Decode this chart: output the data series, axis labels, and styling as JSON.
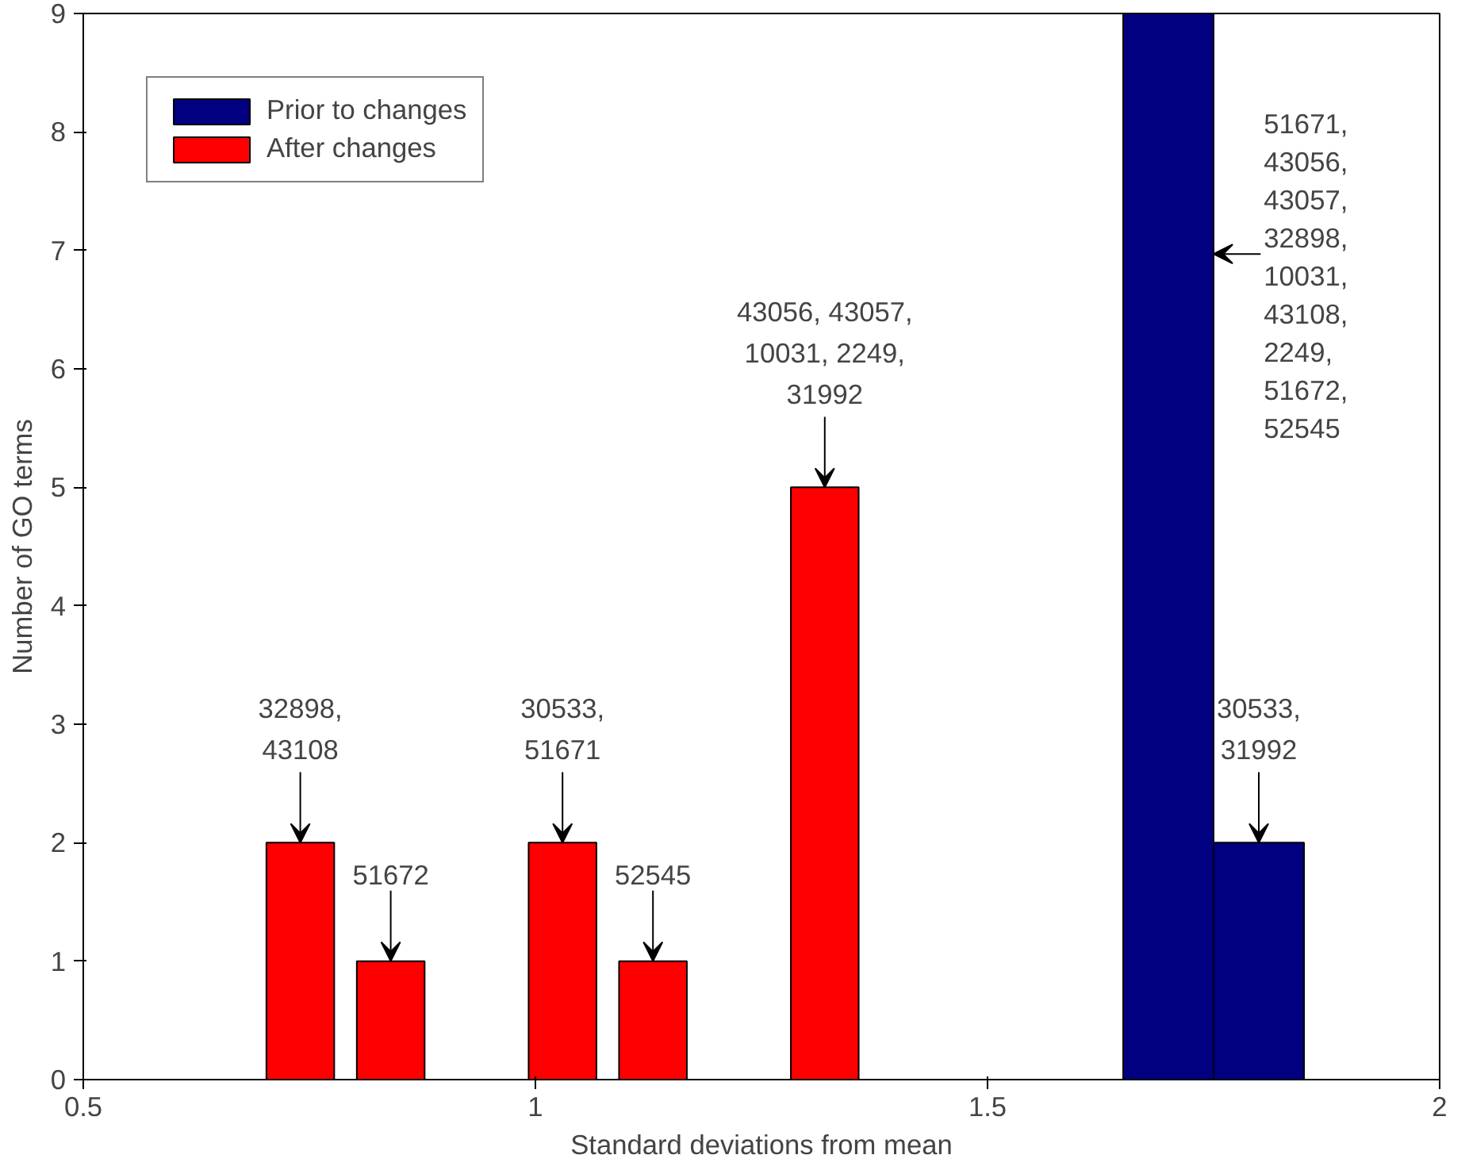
{
  "chart_data": {
    "type": "bar",
    "xlabel": "Standard deviations from mean",
    "ylabel": "Number of GO terms",
    "series": [
      {
        "name": "Prior to changes",
        "color": "#000080",
        "x": [
          1.7,
          1.8
        ],
        "values": [
          9,
          2
        ]
      },
      {
        "name": "After changes",
        "color": "#ff0000",
        "x": [
          0.74,
          0.84,
          1.03,
          1.13,
          1.32
        ],
        "values": [
          2,
          1,
          2,
          1,
          5
        ]
      }
    ],
    "xlim": [
      0.5,
      2
    ],
    "xticks": [
      0.5,
      1,
      1.5,
      2
    ],
    "ylim": [
      0,
      9
    ],
    "yticks": [
      0,
      1,
      2,
      3,
      4,
      5,
      6,
      7,
      8,
      9
    ],
    "grid": false,
    "legend": "top left",
    "annotations": [
      {
        "text": "32898,\n43108",
        "x": 0.74,
        "y": 2
      },
      {
        "text": "51672",
        "x": 0.84,
        "y": 1
      },
      {
        "text": "30533,\n51671",
        "x": 1.03,
        "y": 2
      },
      {
        "text": "52545",
        "x": 1.13,
        "y": 1
      },
      {
        "text": "43056, 43057,\n10031, 2249,\n31992",
        "x": 1.32,
        "y": 5
      },
      "51671,\n43056,\n43057,\n32898,\n10031,\n43108,\n2249,\n51672,\n52545",
      {
        "text": "30533,\n31992",
        "x": 1.8,
        "y": 2
      }
    ]
  }
}
